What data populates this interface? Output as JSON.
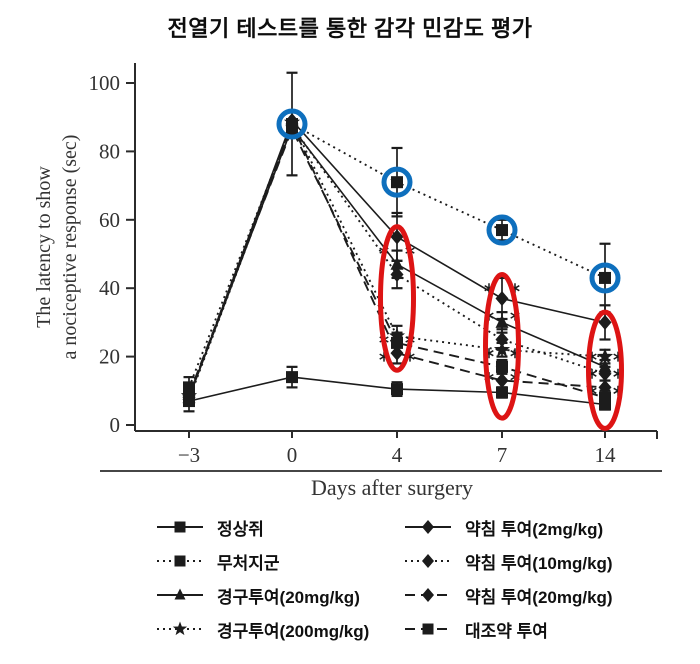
{
  "chart_data": {
    "type": "line",
    "title": "전열기 테스트를 통한 감각 민감도 평가",
    "xlabel": "Days after surgery",
    "ylabel": "The latency to show a nociceptive response (sec)",
    "ylabel_line1": "The latency to show",
    "ylabel_line2": "a nociceptive response (sec)",
    "x_values": [
      -3,
      0,
      4,
      7,
      14
    ],
    "x_tick_labels": [
      "−3",
      "0",
      "4",
      "7",
      "14"
    ],
    "y_ticks": [
      0,
      20,
      40,
      60,
      80,
      100
    ],
    "ylim": [
      0,
      105
    ],
    "grid": false,
    "legend_position": "bottom",
    "series": [
      {
        "name": "정상쥐",
        "marker": "square",
        "line": "solid",
        "values": [
          7,
          14,
          10.5,
          9.5,
          6
        ],
        "err": [
          3,
          3,
          2,
          1.5,
          1.5
        ]
      },
      {
        "name": "무처지군",
        "marker": "square",
        "line": "dotted",
        "values": [
          11,
          88,
          71,
          57,
          43
        ],
        "err": [
          3,
          15,
          10,
          3,
          10
        ]
      },
      {
        "name": "경구투여(20mg/kg)",
        "marker": "triangle",
        "line": "solid",
        "values": [
          8,
          87,
          47,
          30,
          17
        ],
        "err": [
          1.5,
          0,
          4,
          3,
          2
        ]
      },
      {
        "name": "경구투여(200mg/kg)",
        "marker": "star",
        "line": "dotted",
        "values": [
          8.5,
          88.5,
          26,
          22,
          20
        ],
        "err": [
          1.5,
          0,
          3,
          2,
          2
        ]
      },
      {
        "name": "약침 투여(2mg/kg)",
        "marker": "diamond",
        "line": "solid",
        "values": [
          8,
          89,
          55,
          37,
          30
        ],
        "err": [
          1.5,
          0,
          7,
          6,
          5
        ]
      },
      {
        "name": "약침 투여(10mg/kg)",
        "marker": "diamond",
        "line": "dotted",
        "values": [
          7.5,
          87.5,
          44,
          25,
          15
        ],
        "err": [
          1.5,
          0,
          4,
          3,
          2
        ]
      },
      {
        "name": "약침 투여(20mg/kg)",
        "marker": "diamond",
        "line": "dashed",
        "values": [
          8.5,
          88,
          21,
          13,
          11
        ],
        "err": [
          1.5,
          0,
          3,
          2,
          2
        ]
      },
      {
        "name": "대조약 투여",
        "marker": "square",
        "line": "dashed",
        "values": [
          9,
          86.5,
          24,
          17,
          8
        ],
        "err": [
          1.5,
          0,
          3,
          2,
          2
        ]
      }
    ],
    "annotations": {
      "blue_circles": [
        {
          "day": 0,
          "value": 88
        },
        {
          "day": 4,
          "value": 71
        },
        {
          "day": 7,
          "value": 57
        },
        {
          "day": 14,
          "value": 43
        }
      ],
      "red_ellipses": [
        {
          "day": 4,
          "value_top": 58,
          "value_bottom": 16
        },
        {
          "day": 7,
          "value_top": 44,
          "value_bottom": 2
        },
        {
          "day": 14,
          "value_top": 33,
          "value_bottom": -1
        }
      ],
      "significance_marks": [
        {
          "day": 4,
          "values": [
            51,
            25,
            20
          ]
        },
        {
          "day": 7,
          "values": [
            40,
            32,
            21,
            14
          ]
        },
        {
          "day": 14,
          "values": [
            20,
            15,
            10
          ]
        }
      ]
    },
    "colors": {
      "line": "#1c1c1c",
      "marker": "#1c1c1c",
      "axis": "#2b2b2b",
      "highlight_circle_blue": "#0e6fbd",
      "highlight_ellipse_red": "#dd1414"
    }
  }
}
